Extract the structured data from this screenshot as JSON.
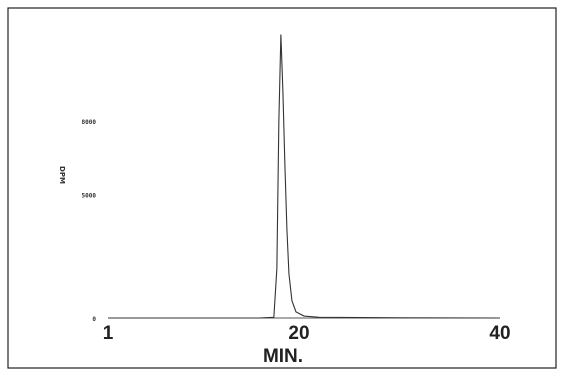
{
  "chart_data": {
    "type": "line",
    "xlabel": "MIN.",
    "ylabel": "DPM",
    "x_ticks": [
      "1",
      "20",
      "40"
    ],
    "y_ticks": [
      "0",
      "5000",
      "8000"
    ],
    "xlim": [
      1,
      40
    ],
    "ylim": [
      0,
      11600
    ],
    "grid": false,
    "series": [
      {
        "x": [
          1,
          10,
          16,
          17.5,
          17.8,
          18.0,
          18.2,
          18.4,
          18.6,
          18.8,
          19.0,
          19.3,
          19.7,
          20.5,
          22,
          30,
          40
        ],
        "y": [
          0,
          0,
          0,
          30,
          2000,
          8000,
          11500,
          9200,
          6200,
          3600,
          1800,
          700,
          250,
          80,
          30,
          10,
          0
        ]
      }
    ],
    "colors": {
      "line": "#333333",
      "frame": "#222222"
    }
  }
}
